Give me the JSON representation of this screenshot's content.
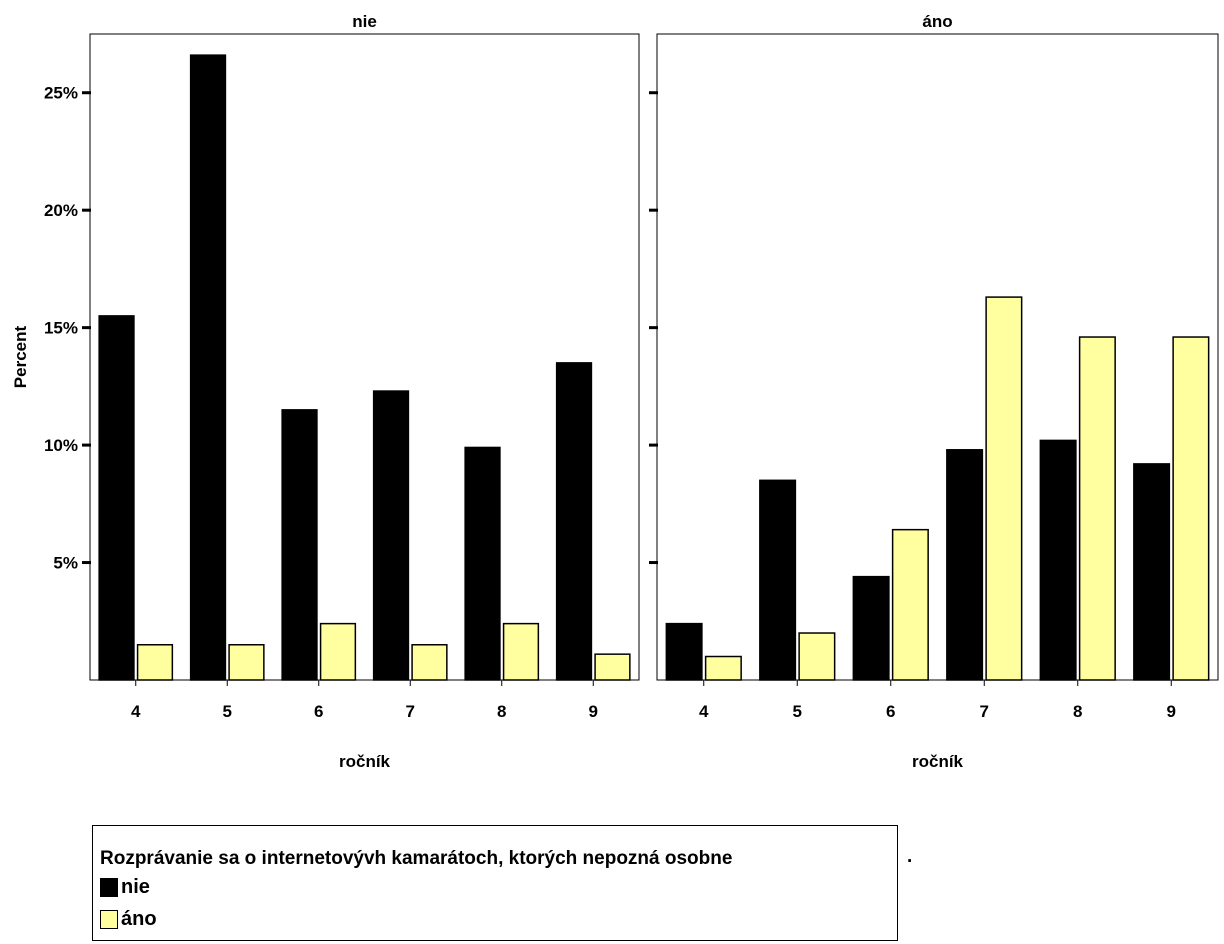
{
  "chart_data": {
    "type": "bar",
    "ylabel": "Percent",
    "ylim": [
      0,
      27.5
    ],
    "yticks": [
      5,
      10,
      15,
      20,
      25
    ],
    "ytick_labels": [
      "5%",
      "10%",
      "15%",
      "20%",
      "25%"
    ],
    "panels": [
      {
        "title": "nie",
        "xlabel": "ročník",
        "categories": [
          "4",
          "5",
          "6",
          "7",
          "8",
          "9"
        ],
        "series": [
          {
            "name": "nie",
            "color": "#000000",
            "values": [
              15.5,
              26.6,
              11.5,
              12.3,
              9.9,
              13.5
            ]
          },
          {
            "name": "áno",
            "color": "#ffffa0",
            "values": [
              1.5,
              1.5,
              2.4,
              1.5,
              2.4,
              1.1
            ]
          }
        ]
      },
      {
        "title": "áno",
        "xlabel": "ročník",
        "categories": [
          "4",
          "5",
          "6",
          "7",
          "8",
          "9"
        ],
        "series": [
          {
            "name": "nie",
            "color": "#000000",
            "values": [
              2.4,
              8.5,
              4.4,
              9.8,
              10.2,
              9.2
            ]
          },
          {
            "name": "áno",
            "color": "#ffffa0",
            "values": [
              1.0,
              2.0,
              6.4,
              16.3,
              14.6,
              14.6
            ]
          }
        ]
      }
    ]
  },
  "legend": {
    "title": "Rozprávanie sa o internetovývh kamarátoch, ktorých nepozná osobne",
    "trailing": ".",
    "items": [
      {
        "label": "nie",
        "color": "#000000"
      },
      {
        "label": "áno",
        "color": "#ffffa0"
      }
    ]
  }
}
